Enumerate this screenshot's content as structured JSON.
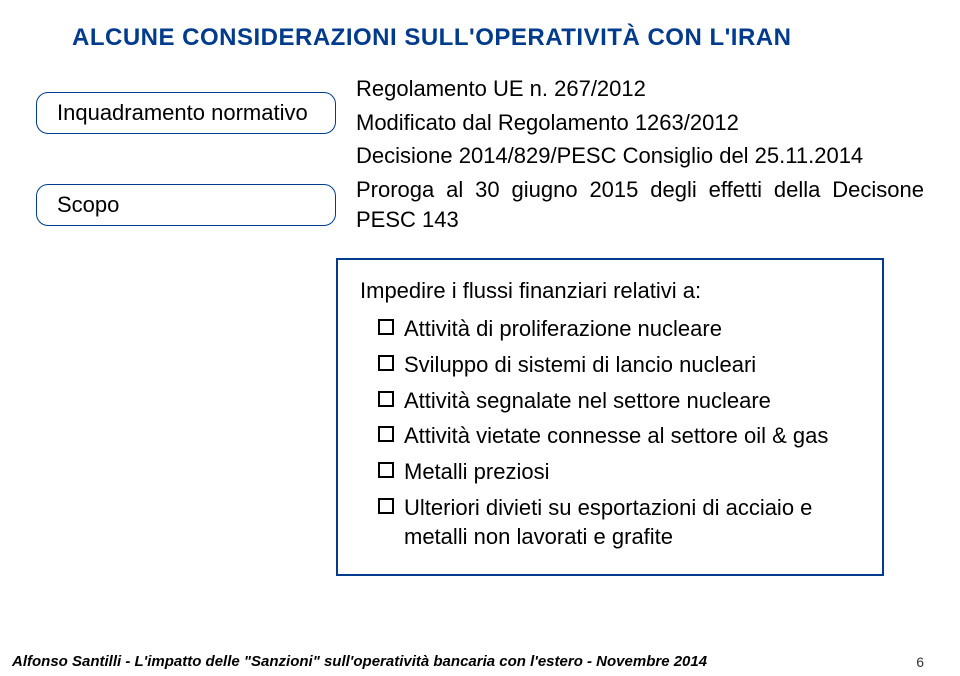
{
  "colors": {
    "title": "#003b8e",
    "box_border": "#003b8e",
    "frame_border": "#003b8e",
    "body_text": "#000000",
    "footer_text": "#000000"
  },
  "title": "ALCUNE CONSIDERAZIONI SULL'OPERATIVITÀ CON L'IRAN",
  "left": {
    "box1": "Inquadramento normativo",
    "box2": "Scopo"
  },
  "right": {
    "line1": "Regolamento UE n. 267/2012",
    "line2": "Modificato dal Regolamento 1263/2012",
    "line3": "Decisione 2014/829/PESC Consiglio del 25.11.2014",
    "line4": "Proroga al 30 giugno 2015 degli effetti della Decisone PESC 143"
  },
  "framed": {
    "lead": "Impedire i flussi finanziari relativi a:",
    "items": [
      "Attività di proliferazione nucleare",
      "Sviluppo di sistemi di lancio nucleari",
      "Attività segnalate nel settore nucleare",
      "Attività vietate connesse al settore oil & gas",
      "Metalli preziosi",
      "Ulteriori divieti su esportazioni di acciaio e metalli non lavorati e grafite"
    ]
  },
  "footer": {
    "text": "Alfonso Santilli - L'impatto delle \"Sanzioni\" sull'operatività bancaria con l'estero  - Novembre 2014",
    "page": "6"
  }
}
